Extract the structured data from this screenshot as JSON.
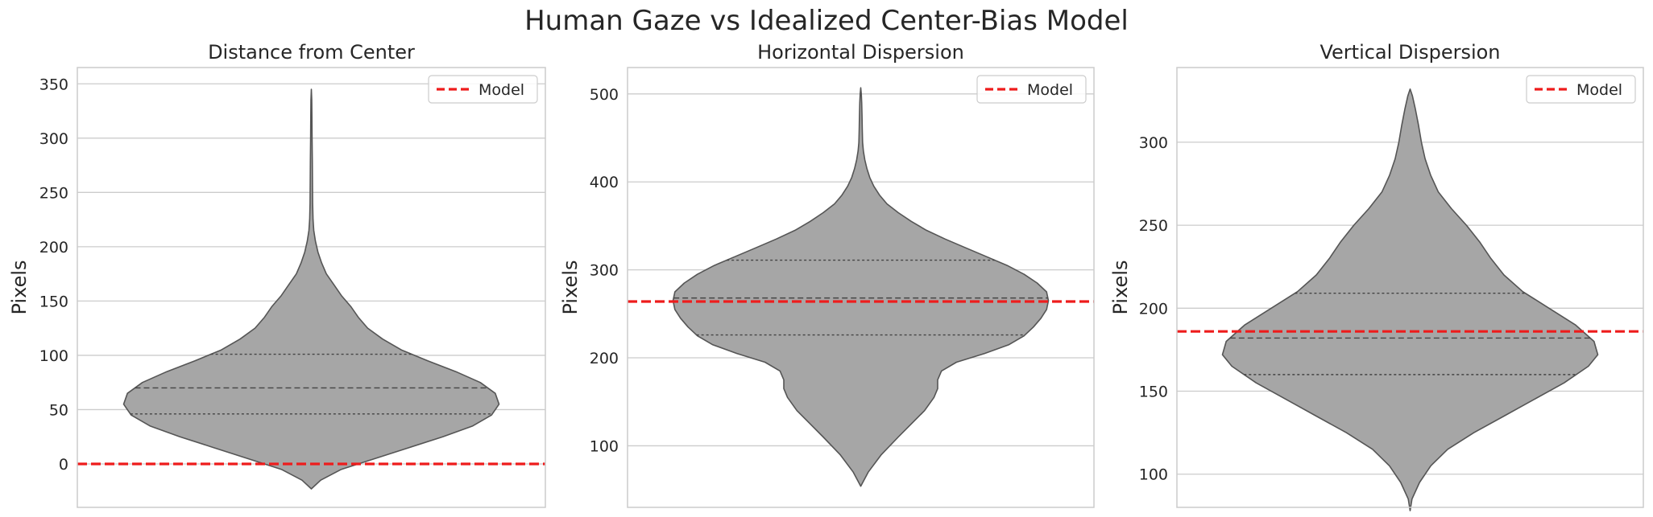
{
  "figure": {
    "suptitle": "Human Gaze vs Idealized Center-Bias Model"
  },
  "colors": {
    "violin_fill": "#a6a6a6",
    "violin_edge": "#555555",
    "model_line": "#ee1c1c",
    "grid": "#cccccc",
    "frame": "#cccccc"
  },
  "chart_data": [
    {
      "type": "violin",
      "title": "Distance from Center",
      "ylabel": "Pixels",
      "ylim": [
        -40,
        365
      ],
      "yticks": [
        0,
        50,
        100,
        150,
        200,
        250,
        300,
        350
      ],
      "grid": true,
      "legend": {
        "position": "top-right",
        "entries": [
          "Model"
        ]
      },
      "model_value": 0,
      "quartiles": {
        "q1": 46,
        "median": 70,
        "q3": 101
      },
      "violin_range": [
        -23,
        345
      ],
      "density_profile": [
        [
          -23,
          0.0
        ],
        [
          -15,
          0.05
        ],
        [
          -5,
          0.16
        ],
        [
          5,
          0.34
        ],
        [
          15,
          0.52
        ],
        [
          25,
          0.7
        ],
        [
          35,
          0.86
        ],
        [
          45,
          0.96
        ],
        [
          55,
          1.0
        ],
        [
          65,
          0.98
        ],
        [
          75,
          0.9
        ],
        [
          85,
          0.77
        ],
        [
          95,
          0.62
        ],
        [
          105,
          0.48
        ],
        [
          115,
          0.38
        ],
        [
          125,
          0.3
        ],
        [
          135,
          0.25
        ],
        [
          145,
          0.21
        ],
        [
          155,
          0.16
        ],
        [
          165,
          0.12
        ],
        [
          175,
          0.08
        ],
        [
          185,
          0.055
        ],
        [
          195,
          0.035
        ],
        [
          205,
          0.022
        ],
        [
          215,
          0.013
        ],
        [
          225,
          0.009
        ],
        [
          240,
          0.007
        ],
        [
          260,
          0.006
        ],
        [
          280,
          0.005
        ],
        [
          300,
          0.004
        ],
        [
          320,
          0.003
        ],
        [
          335,
          0.002
        ],
        [
          345,
          0.0
        ]
      ]
    },
    {
      "type": "violin",
      "title": "Horizontal Dispersion",
      "ylabel": "Pixels",
      "ylim": [
        30,
        530
      ],
      "yticks": [
        100,
        200,
        300,
        400,
        500
      ],
      "grid": true,
      "legend": {
        "position": "top-right",
        "entries": [
          "Model"
        ]
      },
      "model_value": 264,
      "quartiles": {
        "q1": 226,
        "median": 268,
        "q3": 311
      },
      "violin_range": [
        54,
        507
      ],
      "density_profile": [
        [
          54,
          0.0
        ],
        [
          70,
          0.04
        ],
        [
          90,
          0.11
        ],
        [
          110,
          0.2
        ],
        [
          125,
          0.27
        ],
        [
          140,
          0.34
        ],
        [
          155,
          0.39
        ],
        [
          165,
          0.41
        ],
        [
          175,
          0.41
        ],
        [
          185,
          0.43
        ],
        [
          195,
          0.51
        ],
        [
          205,
          0.66
        ],
        [
          215,
          0.79
        ],
        [
          225,
          0.87
        ],
        [
          235,
          0.92
        ],
        [
          245,
          0.96
        ],
        [
          255,
          0.99
        ],
        [
          265,
          1.0
        ],
        [
          275,
          0.99
        ],
        [
          285,
          0.94
        ],
        [
          295,
          0.87
        ],
        [
          305,
          0.78
        ],
        [
          315,
          0.67
        ],
        [
          325,
          0.56
        ],
        [
          335,
          0.45
        ],
        [
          345,
          0.35
        ],
        [
          355,
          0.27
        ],
        [
          365,
          0.2
        ],
        [
          375,
          0.14
        ],
        [
          385,
          0.1
        ],
        [
          395,
          0.07
        ],
        [
          405,
          0.048
        ],
        [
          415,
          0.033
        ],
        [
          425,
          0.022
        ],
        [
          435,
          0.014
        ],
        [
          445,
          0.01
        ],
        [
          460,
          0.008
        ],
        [
          475,
          0.007
        ],
        [
          490,
          0.005
        ],
        [
          500,
          0.003
        ],
        [
          507,
          0.0
        ]
      ]
    },
    {
      "type": "violin",
      "title": "Vertical Dispersion",
      "ylabel": "Pixels",
      "ylim": [
        80,
        345
      ],
      "yticks": [
        100,
        150,
        200,
        250,
        300
      ],
      "grid": true,
      "legend": {
        "position": "top-right",
        "entries": [
          "Model"
        ]
      },
      "model_value": 186,
      "quartiles": {
        "q1": 160,
        "median": 182,
        "q3": 209
      },
      "violin_range": [
        78,
        332
      ],
      "density_profile": [
        [
          78,
          0.0
        ],
        [
          85,
          0.01
        ],
        [
          95,
          0.05
        ],
        [
          105,
          0.11
        ],
        [
          115,
          0.2
        ],
        [
          125,
          0.34
        ],
        [
          135,
          0.5
        ],
        [
          145,
          0.66
        ],
        [
          155,
          0.82
        ],
        [
          165,
          0.95
        ],
        [
          172,
          1.0
        ],
        [
          180,
          0.98
        ],
        [
          190,
          0.88
        ],
        [
          200,
          0.74
        ],
        [
          210,
          0.6
        ],
        [
          220,
          0.5
        ],
        [
          230,
          0.43
        ],
        [
          240,
          0.37
        ],
        [
          250,
          0.3
        ],
        [
          260,
          0.22
        ],
        [
          270,
          0.15
        ],
        [
          280,
          0.11
        ],
        [
          290,
          0.08
        ],
        [
          300,
          0.06
        ],
        [
          310,
          0.045
        ],
        [
          320,
          0.028
        ],
        [
          328,
          0.012
        ],
        [
          332,
          0.0
        ]
      ]
    }
  ]
}
